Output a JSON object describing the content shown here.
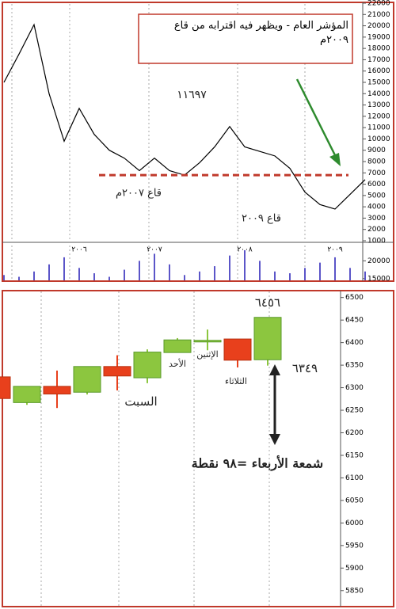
{
  "chart_data": [
    {
      "type": "line",
      "color": "#000000",
      "values": [
        15000,
        17500,
        20100,
        14000,
        9800,
        12700,
        10400,
        9000,
        8300,
        7200,
        8300,
        7200,
        6800,
        7900,
        9300,
        11100,
        9300,
        8900,
        8500,
        7400,
        5300,
        4200,
        3800,
        5100,
        6400
      ],
      "ylim": [
        1000,
        22000
      ],
      "yticks": [
        1000,
        2000,
        3000,
        4000,
        5000,
        6000,
        7000,
        8000,
        9000,
        10000,
        11000,
        12000,
        13000,
        14000,
        15000,
        16000,
        17000,
        18000,
        19000,
        20000,
        21000,
        22000
      ],
      "reference_line": 6800,
      "annotations": [
        "المؤشر العام - ويظهر فيه  اقترابه من قاع ٢٠٠٩م",
        "١١٦٩٧",
        "قاع ٢٠٠٧م",
        "قاع ٢٠٠٩"
      ]
    },
    {
      "type": "bar",
      "color": "#5b55c8",
      "categories": [
        null,
        null,
        null,
        null,
        null,
        "٢٠٠٦",
        null,
        null,
        null,
        null,
        "٢٠٠٧",
        null,
        null,
        null,
        null,
        null,
        "٢٠٠٨",
        null,
        null,
        null,
        null,
        null,
        "٢٠٠٩",
        null,
        null
      ],
      "values": [
        16000,
        15500,
        17000,
        19000,
        21000,
        18000,
        16500,
        15500,
        17500,
        20000,
        22000,
        19000,
        16000,
        17000,
        18500,
        21500,
        23000,
        20000,
        17000,
        16500,
        18000,
        19500,
        21000,
        18000,
        17000
      ],
      "ylim": [
        14500,
        25000
      ],
      "yticks": [
        15000,
        20000
      ]
    },
    {
      "type": "candlestick",
      "up_color": "#8cc63f",
      "down_color": "#e8401c",
      "open": [
        6324,
        6267,
        6303,
        6290,
        6347,
        6322,
        6378,
        6403,
        6408,
        6362
      ],
      "close": [
        6276,
        6303,
        6286,
        6347,
        6326,
        6379,
        6406,
        6405,
        6361,
        6456
      ],
      "high": [
        6330,
        6303,
        6338,
        6347,
        6372,
        6385,
        6410,
        6429,
        6408,
        6456
      ],
      "low": [
        6270,
        6262,
        6255,
        6285,
        6294,
        6310,
        6378,
        6383,
        6345,
        6349
      ],
      "ylim": [
        5825,
        6510
      ],
      "yticks": [
        5850,
        5900,
        5950,
        6000,
        6050,
        6100,
        6150,
        6200,
        6250,
        6300,
        6350,
        6400,
        6450,
        6500
      ],
      "annotations": [
        "٦٤٥٦",
        "٦٣٤٩",
        "السبت",
        "الأحد",
        "الإثنين",
        "الثلاثاء",
        "شمعة الأربعاء =٩٨ نقطة"
      ]
    }
  ]
}
